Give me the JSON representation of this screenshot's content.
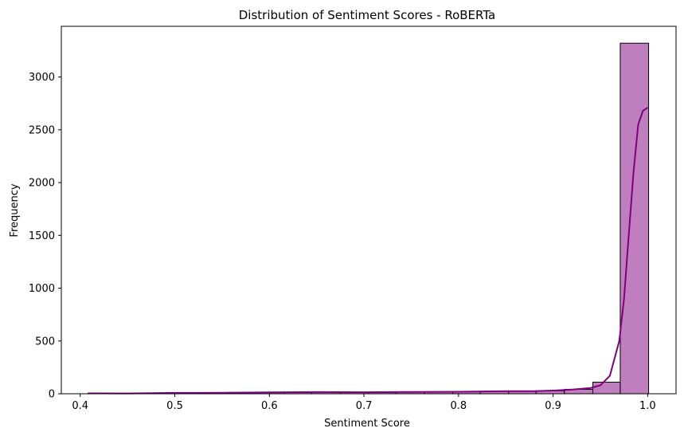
{
  "chart_data": {
    "type": "bar",
    "title": "Distribution of Sentiment Scores - RoBERTa",
    "xlabel": "Sentiment Score",
    "ylabel": "Frequency",
    "xlim": [
      0.38,
      1.03
    ],
    "ylim": [
      0,
      3480
    ],
    "xticks": [
      0.4,
      0.5,
      0.6,
      0.7,
      0.8,
      0.9,
      1.0
    ],
    "xtick_labels": [
      "0.4",
      "0.5",
      "0.6",
      "0.7",
      "0.8",
      "0.9",
      "1.0"
    ],
    "yticks": [
      0,
      500,
      1000,
      1500,
      2000,
      2500,
      3000
    ],
    "ytick_labels": [
      "0",
      "500",
      "1000",
      "1500",
      "2000",
      "2500",
      "3000"
    ],
    "grid": false,
    "bar_color": "#bf7fbf",
    "edge_color": "#000000",
    "kde_color": "#800080",
    "bins": [
      {
        "x0": 0.408,
        "x1": 0.438,
        "count": 3
      },
      {
        "x0": 0.438,
        "x1": 0.467,
        "count": 2
      },
      {
        "x0": 0.467,
        "x1": 0.497,
        "count": 4
      },
      {
        "x0": 0.497,
        "x1": 0.527,
        "count": 10
      },
      {
        "x0": 0.527,
        "x1": 0.556,
        "count": 8
      },
      {
        "x0": 0.556,
        "x1": 0.586,
        "count": 12
      },
      {
        "x0": 0.586,
        "x1": 0.616,
        "count": 14
      },
      {
        "x0": 0.616,
        "x1": 0.645,
        "count": 12
      },
      {
        "x0": 0.645,
        "x1": 0.675,
        "count": 16
      },
      {
        "x0": 0.675,
        "x1": 0.705,
        "count": 14
      },
      {
        "x0": 0.705,
        "x1": 0.734,
        "count": 13
      },
      {
        "x0": 0.734,
        "x1": 0.764,
        "count": 18
      },
      {
        "x0": 0.764,
        "x1": 0.794,
        "count": 19
      },
      {
        "x0": 0.794,
        "x1": 0.823,
        "count": 20
      },
      {
        "x0": 0.823,
        "x1": 0.853,
        "count": 22
      },
      {
        "x0": 0.853,
        "x1": 0.882,
        "count": 22
      },
      {
        "x0": 0.882,
        "x1": 0.912,
        "count": 28
      },
      {
        "x0": 0.912,
        "x1": 0.942,
        "count": 42
      },
      {
        "x0": 0.942,
        "x1": 0.971,
        "count": 110
      },
      {
        "x0": 0.971,
        "x1": 1.001,
        "count": 3320
      }
    ],
    "kde": [
      [
        0.408,
        4
      ],
      [
        0.45,
        3
      ],
      [
        0.5,
        8
      ],
      [
        0.55,
        9
      ],
      [
        0.6,
        13
      ],
      [
        0.65,
        16
      ],
      [
        0.7,
        14
      ],
      [
        0.75,
        17
      ],
      [
        0.8,
        19
      ],
      [
        0.85,
        24
      ],
      [
        0.88,
        24
      ],
      [
        0.9,
        30
      ],
      [
        0.92,
        40
      ],
      [
        0.94,
        55
      ],
      [
        0.95,
        80
      ],
      [
        0.96,
        170
      ],
      [
        0.97,
        500
      ],
      [
        0.975,
        900
      ],
      [
        0.98,
        1500
      ],
      [
        0.985,
        2100
      ],
      [
        0.99,
        2550
      ],
      [
        0.995,
        2680
      ],
      [
        1.0,
        2710
      ]
    ]
  }
}
